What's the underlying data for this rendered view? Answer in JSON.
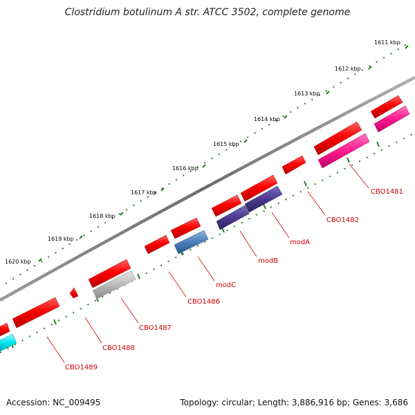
{
  "header": {
    "title": "Clostridium botulinum A str. ATCC 3502, complete genome"
  },
  "footer": {
    "accession": "Accession: NC_009495",
    "summary": "Topology: circular; Length: 3,886,916 bp; Genes: 3,686"
  },
  "colors": {
    "backbone": "#7a7a7a",
    "tick": "#2a7a2a",
    "label": "#cc0000"
  },
  "scale_ticks": [
    "1611 kbp",
    "1612 kbp",
    "1613 kbp",
    "1614 kbp",
    "1615 kbp",
    "1616 kbp",
    "1617 kbp",
    "1618 kbp",
    "1619 kbp",
    "1620 kbp"
  ],
  "genes": [
    {
      "label": "CBO1481",
      "color": "#ff1a8c",
      "strand": "inner"
    },
    {
      "label": "CBO1482",
      "color": "#ff1a1a",
      "strand": "outer"
    },
    {
      "label": "modA",
      "color": "#4b3a8f",
      "strand": "inner"
    },
    {
      "label": "modB",
      "color": "#4b3a8f",
      "strand": "inner"
    },
    {
      "label": "modC",
      "color": "#4a7fb8",
      "strand": "inner"
    },
    {
      "label": "CBO1486",
      "color": "#ff1a1a",
      "strand": "outer"
    },
    {
      "label": "CBO1487",
      "color": "#b8b8b8",
      "strand": "inner"
    },
    {
      "label": "CBO1488",
      "color": "#ff1a1a",
      "strand": "outer"
    },
    {
      "label": "CBO1489",
      "color": "#ff1a1a",
      "strand": "outer"
    }
  ]
}
